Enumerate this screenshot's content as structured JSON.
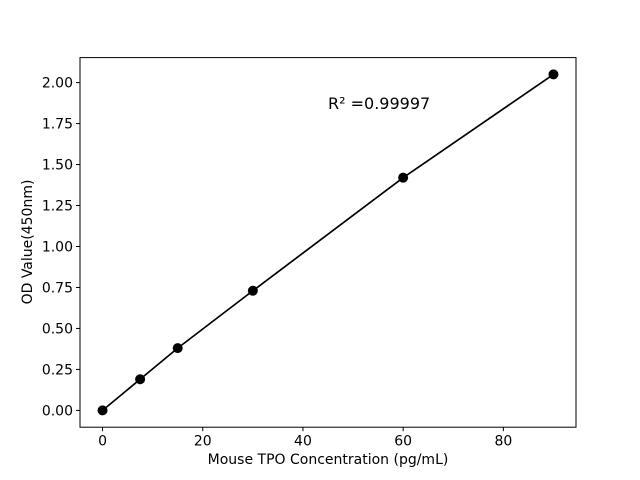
{
  "figure": {
    "background": "#ffffff",
    "text_color": "#000000"
  },
  "chart_data": {
    "type": "line",
    "title": "",
    "xlabel": "Mouse TPO Concentration (pg/mL)",
    "ylabel": "OD Value(450nm)",
    "x": [
      0,
      7.5,
      15,
      30,
      60,
      90
    ],
    "y": [
      0.0,
      0.19,
      0.38,
      0.73,
      1.42,
      2.05
    ],
    "line_color": "#000000",
    "marker": "circle",
    "marker_color": "#000000",
    "xlim": [
      -4.5,
      94.5
    ],
    "ylim": [
      -0.1025,
      2.1525
    ],
    "xticks": {
      "values": [
        0,
        20,
        40,
        60,
        80
      ],
      "labels": [
        "0",
        "20",
        "40",
        "60",
        "80"
      ]
    },
    "yticks": {
      "values": [
        0.0,
        0.25,
        0.5,
        0.75,
        1.0,
        1.25,
        1.5,
        1.75,
        2.0
      ],
      "labels": [
        "0.00",
        "0.25",
        "0.50",
        "0.75",
        "1.00",
        "1.25",
        "1.50",
        "1.75",
        "2.00"
      ]
    },
    "grid": false,
    "annotation": {
      "text": "R² =0.99997",
      "x": 45,
      "y": 1.85
    }
  }
}
